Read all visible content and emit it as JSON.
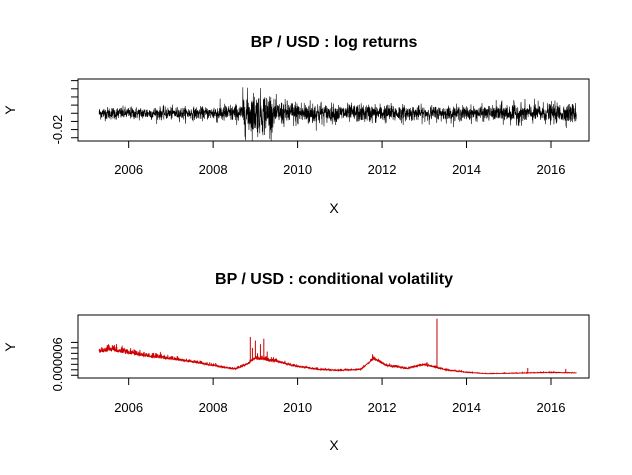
{
  "chart_data": [
    {
      "type": "line",
      "title": "BP / USD : log returns",
      "xlabel": "X",
      "ylabel": "Y",
      "color": "#000000",
      "xlim": [
        2004.8,
        2016.9
      ],
      "ylim": [
        -0.034,
        0.042
      ],
      "x_ticks": [
        "2006",
        "2008",
        "2010",
        "2012",
        "2014",
        "2016"
      ],
      "y_tick_labels": [
        {
          "value": -0.02,
          "label": "-0.02"
        }
      ],
      "y_tick_values": [
        -0.03,
        -0.02,
        -0.01,
        0.0,
        0.01,
        0.02,
        0.03,
        0.04
      ],
      "x_range": [
        2005.3,
        2016.6
      ],
      "segments": [
        {
          "from": 2005.3,
          "to": 2008.0,
          "sd": 0.0038
        },
        {
          "from": 2008.0,
          "to": 2008.7,
          "sd": 0.0055
        },
        {
          "from": 2008.7,
          "to": 2009.4,
          "sd": 0.013
        },
        {
          "from": 2009.4,
          "to": 2010.6,
          "sd": 0.0075
        },
        {
          "from": 2010.6,
          "to": 2012.5,
          "sd": 0.0055
        },
        {
          "from": 2012.5,
          "to": 2014.7,
          "sd": 0.0045
        },
        {
          "from": 2014.7,
          "to": 2016.6,
          "sd": 0.006
        }
      ]
    },
    {
      "type": "line",
      "title": "BP / USD : conditional volatility",
      "xlabel": "X",
      "ylabel": "Y",
      "color": "#cc0000",
      "xlim": [
        2004.8,
        2016.9
      ],
      "ylim": [
        -1.5e-06,
        3.3e-05
      ],
      "x_ticks": [
        "2006",
        "2008",
        "2010",
        "2012",
        "2014",
        "2016"
      ],
      "y_tick_labels": [
        {
          "value": 6e-06,
          "label": "0.000006"
        }
      ],
      "y_tick_values": [
        0,
        3e-06,
        6e-06,
        9e-06,
        1.2e-05,
        1.5e-05,
        1.8e-05
      ],
      "x_range": [
        2005.3,
        2016.6
      ],
      "baseline_path": [
        {
          "x": 2005.3,
          "y": 1.25e-05
        },
        {
          "x": 2005.6,
          "y": 1.32e-05
        },
        {
          "x": 2006.0,
          "y": 1.15e-05
        },
        {
          "x": 2006.5,
          "y": 9.8e-06
        },
        {
          "x": 2007.0,
          "y": 8.5e-06
        },
        {
          "x": 2007.5,
          "y": 7e-06
        },
        {
          "x": 2008.0,
          "y": 5e-06
        },
        {
          "x": 2008.5,
          "y": 3.2e-06
        },
        {
          "x": 2008.8,
          "y": 5.5e-06
        },
        {
          "x": 2009.0,
          "y": 9e-06
        },
        {
          "x": 2009.5,
          "y": 7e-06
        },
        {
          "x": 2010.0,
          "y": 4.5e-06
        },
        {
          "x": 2010.5,
          "y": 3e-06
        },
        {
          "x": 2011.0,
          "y": 2.5e-06
        },
        {
          "x": 2011.5,
          "y": 3e-06
        },
        {
          "x": 2011.8,
          "y": 8.5e-06
        },
        {
          "x": 2012.1,
          "y": 5e-06
        },
        {
          "x": 2012.6,
          "y": 3.5e-06
        },
        {
          "x": 2013.0,
          "y": 5.5e-06
        },
        {
          "x": 2013.5,
          "y": 2.8e-06
        },
        {
          "x": 2014.0,
          "y": 1.5e-06
        },
        {
          "x": 2014.5,
          "y": 8e-07
        },
        {
          "x": 2015.0,
          "y": 1e-06
        },
        {
          "x": 2015.5,
          "y": 1.2e-06
        },
        {
          "x": 2016.0,
          "y": 1.4e-06
        },
        {
          "x": 2016.6,
          "y": 1.2e-06
        }
      ],
      "spikes": [
        {
          "x": 2008.88,
          "y": 2.1e-05
        },
        {
          "x": 2008.93,
          "y": 1.5e-05
        },
        {
          "x": 2009.0,
          "y": 1.9e-05
        },
        {
          "x": 2009.05,
          "y": 1.2e-05
        },
        {
          "x": 2009.12,
          "y": 1.7e-05
        },
        {
          "x": 2009.2,
          "y": 2e-05
        },
        {
          "x": 2009.28,
          "y": 1.3e-05
        },
        {
          "x": 2011.78,
          "y": 1.1e-05
        },
        {
          "x": 2013.3,
          "y": 3.1e-05
        },
        {
          "x": 2015.45,
          "y": 4e-06
        },
        {
          "x": 2016.35,
          "y": 3.5e-06
        }
      ]
    }
  ]
}
